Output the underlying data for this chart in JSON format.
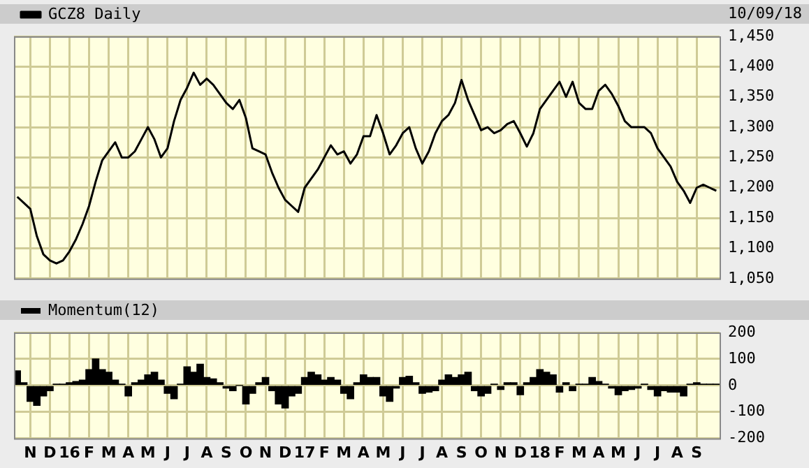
{
  "chart_data": [
    {
      "type": "line",
      "legend": "top left",
      "grid": true,
      "marker": "none",
      "tick_labels": "y",
      "annotations": [
        "10/09/18"
      ],
      "categories": [
        null,
        null,
        null,
        null,
        null,
        null,
        null,
        null,
        null,
        null,
        null,
        null,
        null,
        null,
        null,
        null,
        null,
        null,
        null,
        null,
        null,
        null,
        null,
        null,
        null,
        null,
        null,
        null,
        null,
        null,
        null,
        null,
        null,
        null,
        null,
        null,
        null,
        null,
        null,
        null,
        null,
        null,
        null,
        null,
        null,
        null,
        null,
        null,
        null,
        null,
        null,
        null,
        null,
        null,
        null,
        null,
        null,
        null,
        null,
        null,
        null,
        null,
        null,
        null,
        null,
        null,
        null,
        null,
        null,
        null,
        null,
        null,
        null,
        null,
        null,
        null,
        null,
        null,
        null,
        null,
        null,
        null,
        null,
        null,
        null,
        null,
        null,
        null,
        null,
        null,
        null,
        null,
        null,
        null,
        null,
        null,
        null,
        null,
        null,
        null,
        null,
        null,
        null,
        null,
        null,
        null,
        null,
        null
      ],
      "series": [
        {
          "name": "GCZ8 Daily",
          "color": "#000000",
          "values": [
            1185,
            1175,
            1165,
            1120,
            1090,
            1080,
            1075,
            1080,
            1095,
            1115,
            1140,
            1170,
            1210,
            1245,
            1260,
            1275,
            1250,
            1250,
            1260,
            1280,
            1300,
            1280,
            1250,
            1265,
            1310,
            1345,
            1365,
            1390,
            1370,
            1380,
            1370,
            1355,
            1340,
            1330,
            1345,
            1315,
            1265,
            1260,
            1255,
            1225,
            1200,
            1180,
            1170,
            1160,
            1200,
            1215,
            1230,
            1250,
            1270,
            1255,
            1260,
            1240,
            1255,
            1285,
            1285,
            1320,
            1290,
            1255,
            1270,
            1290,
            1300,
            1265,
            1240,
            1260,
            1290,
            1310,
            1320,
            1340,
            1378,
            1345,
            1320,
            1295,
            1300,
            1290,
            1295,
            1305,
            1310,
            1290,
            1268,
            1290,
            1330,
            1345,
            1360,
            1375,
            1350,
            1375,
            1340,
            1330,
            1330,
            1360,
            1370,
            1355,
            1335,
            1310,
            1300,
            1300,
            1300,
            1290,
            1265,
            1250,
            1235,
            1210,
            1195,
            1175,
            1200,
            1205,
            1200,
            1195
          ]
        }
      ],
      "ylim": [
        1050,
        1450
      ],
      "yticks": [
        {
          "value": 1050,
          "label": "1,050"
        },
        {
          "value": 1100,
          "label": "1,100"
        },
        {
          "value": 1150,
          "label": "1,150"
        },
        {
          "value": 1200,
          "label": "1,200"
        },
        {
          "value": 1250,
          "label": "1,250"
        },
        {
          "value": 1300,
          "label": "1,300"
        },
        {
          "value": 1350,
          "label": "1,350"
        },
        {
          "value": 1400,
          "label": "1,400"
        },
        {
          "value": 1450,
          "label": "1,450"
        }
      ]
    },
    {
      "type": "bar",
      "legend": "top left",
      "grid": true,
      "categories": [
        null,
        null,
        "N",
        null,
        null,
        "D",
        null,
        null,
        "16",
        null,
        null,
        "F",
        null,
        null,
        "M",
        null,
        null,
        "A",
        null,
        null,
        "M",
        null,
        null,
        "J",
        null,
        null,
        "J",
        null,
        null,
        "A",
        null,
        null,
        "S",
        null,
        null,
        "O",
        null,
        null,
        "N",
        null,
        null,
        "D",
        null,
        null,
        "17",
        null,
        null,
        "F",
        null,
        null,
        "M",
        null,
        null,
        "A",
        null,
        null,
        "M",
        null,
        null,
        "J",
        null,
        null,
        "J",
        null,
        null,
        "A",
        null,
        null,
        "S",
        null,
        null,
        "O",
        null,
        null,
        "N",
        null,
        null,
        "D",
        null,
        null,
        "18",
        null,
        null,
        "F",
        null,
        null,
        "M",
        null,
        null,
        "A",
        null,
        null,
        "M",
        null,
        null,
        "J",
        null,
        null,
        "J",
        null,
        null,
        "A",
        null,
        null,
        "S",
        null,
        null,
        null
      ],
      "series": [
        {
          "name": "Momentum(12)",
          "color": "#000000",
          "values": [
            55,
            10,
            -60,
            -75,
            -40,
            -20,
            5,
            5,
            10,
            15,
            20,
            60,
            100,
            60,
            50,
            20,
            5,
            -40,
            10,
            20,
            40,
            50,
            20,
            -30,
            -50,
            5,
            70,
            50,
            80,
            30,
            25,
            10,
            -10,
            -20,
            0,
            -70,
            -30,
            10,
            30,
            -20,
            -70,
            -85,
            -40,
            -30,
            30,
            50,
            40,
            20,
            30,
            20,
            -30,
            -50,
            10,
            40,
            30,
            30,
            -40,
            -60,
            -10,
            30,
            35,
            10,
            -30,
            -25,
            -20,
            20,
            40,
            30,
            40,
            50,
            -20,
            -40,
            -30,
            5,
            -15,
            10,
            10,
            -35,
            10,
            30,
            60,
            50,
            40,
            -25,
            10,
            -20,
            5,
            5,
            30,
            15,
            5,
            -10,
            -35,
            -20,
            -15,
            -10,
            5,
            -15,
            -40,
            -20,
            -25,
            -25,
            -40,
            5,
            10,
            5,
            5,
            5
          ]
        }
      ],
      "ylim": [
        -200,
        200
      ],
      "yticks": [
        -200,
        -100,
        0,
        100,
        200
      ]
    }
  ]
}
